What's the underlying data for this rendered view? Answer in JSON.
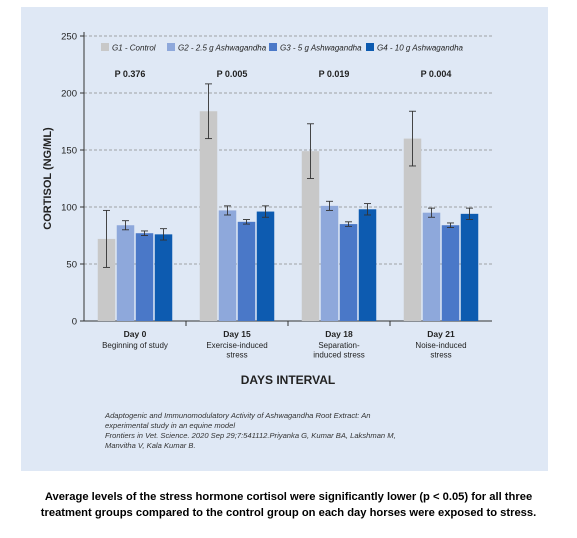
{
  "chart_data": {
    "type": "bar",
    "xlabel": "DAYS INTERVAL",
    "ylabel": "CORTISOL (NG/ML)",
    "ylim": [
      0,
      250
    ],
    "yticks": [
      0,
      50,
      100,
      150,
      200,
      250
    ],
    "grid": true,
    "legend": "top",
    "categories": [
      {
        "day": "Day 0",
        "desc": [
          "Beginning of study"
        ],
        "p": "P  0.376"
      },
      {
        "day": "Day 15",
        "desc": [
          "Exercise-induced",
          "stress"
        ],
        "p": "P  0.005"
      },
      {
        "day": "Day 18",
        "desc": [
          "Separation-",
          "induced stress"
        ],
        "p": "P  0.019"
      },
      {
        "day": "Day 21",
        "desc": [
          "Noise-induced",
          "stress"
        ],
        "p": "P  0.004"
      }
    ],
    "series": [
      {
        "name": "G1 - Control",
        "color": "#c8c8c8",
        "values": [
          72,
          184,
          149,
          160
        ],
        "err": [
          25,
          24,
          24,
          24
        ]
      },
      {
        "name": "G2 - 2.5 g Ashwagandha",
        "color": "#8ea8db",
        "values": [
          84,
          97,
          101,
          95
        ],
        "err": [
          4,
          4,
          4,
          4
        ]
      },
      {
        "name": "G3 - 5 g Ashwagandha",
        "color": "#4a78c8",
        "values": [
          77,
          87,
          85,
          84
        ],
        "err": [
          2,
          2,
          2,
          2
        ]
      },
      {
        "name": "G4 - 10 g Ashwagandha",
        "color": "#0d5bb0",
        "values": [
          76,
          96,
          98,
          94
        ],
        "err": [
          5,
          5,
          5,
          5
        ]
      }
    ]
  },
  "citation": {
    "line1": "Adaptogenic and Immunomodulatory Activity of Ashwagandha Root Extract: An",
    "line2": "experimental study in an equine model",
    "line3": "Frontiers in Vet. Science. 2020 Sep 29;7:541112.Priyanka G, Kumar BA, Lakshman M,",
    "line4": "Manvitha V, Kala Kumar B."
  },
  "caption": {
    "line1": "Average levels of the stress hormone cortisol were significantly lower (p < 0.05) for all three",
    "line2": "treatment groups compared to the control group on each day horses were exposed to stress."
  }
}
